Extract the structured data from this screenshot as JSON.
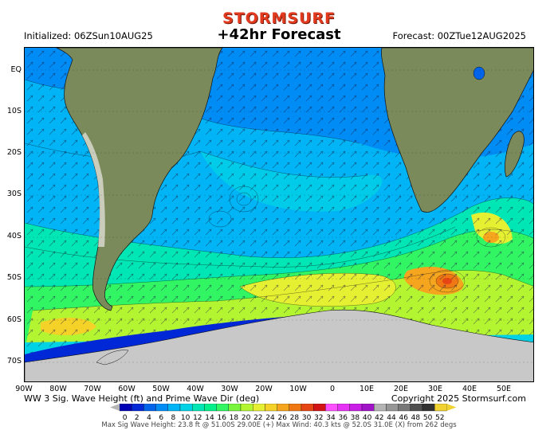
{
  "brand": "STORMSURF",
  "title": "+42hr Forecast",
  "initialized": "Initialized: 06ZSun10AUG25",
  "forecast": "Forecast: 00ZTue12AUG2025",
  "lat_labels": [
    "EQ",
    "10S",
    "20S",
    "30S",
    "40S",
    "50S",
    "60S",
    "70S"
  ],
  "lon_labels": [
    "90W",
    "80W",
    "70W",
    "60W",
    "50W",
    "40W",
    "30W",
    "20W",
    "10W",
    "0",
    "10E",
    "20E",
    "30E",
    "40E",
    "50E"
  ],
  "caption": "WW 3 Sig. Wave Height (ft) and Prime Wave Dir (deg)",
  "copyright": "Copyright 2025 Stormsurf.com",
  "scale_labels": [
    "0",
    "2",
    "4",
    "6",
    "8",
    "10",
    "12",
    "14",
    "16",
    "18",
    "20",
    "22",
    "24",
    "26",
    "28",
    "30",
    "32",
    "34",
    "36",
    "38",
    "40",
    "42",
    "44",
    "46",
    "48",
    "50",
    "52"
  ],
  "scale_colors": [
    "#0000b4",
    "#0028d7",
    "#0064eb",
    "#008cf5",
    "#00b4f5",
    "#00d2e6",
    "#00e6b4",
    "#00f08c",
    "#32f564",
    "#78f53c",
    "#b4f532",
    "#e6f032",
    "#f5d228",
    "#f5a51e",
    "#f07814",
    "#e64614",
    "#d21414",
    "#ff50ff",
    "#e632f5",
    "#c81ee6",
    "#a014c8",
    "#b4b4b4",
    "#969696",
    "#787878",
    "#505050",
    "#323232",
    "#f0d232"
  ],
  "footer": "Max Sig Wave Height: 23.8 ft @ 51.00S 29.00E (+)   Max Wind: 40.3 kts @ 52.0S 31.0E (X) from 262 degs"
}
